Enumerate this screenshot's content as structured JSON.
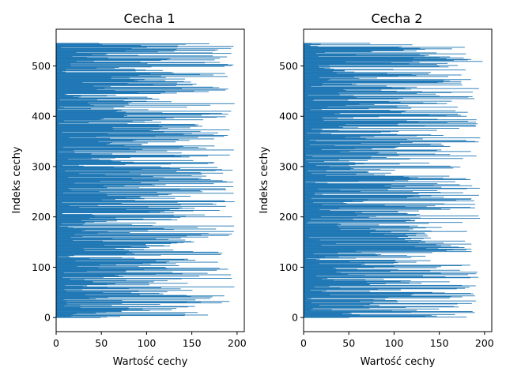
{
  "chart_data": [
    {
      "type": "bar",
      "orientation": "horizontal",
      "title": "Cecha 1",
      "xlabel": "Wartość cechy",
      "ylabel": "Indeks cechy",
      "xlim": [
        0,
        208
      ],
      "ylim": [
        -28,
        573
      ],
      "xticks": [
        0,
        50,
        100,
        150,
        200
      ],
      "yticks": [
        0,
        100,
        200,
        300,
        400,
        500
      ],
      "grid": false,
      "bar_color": "#1f77b4",
      "n_bars": 546,
      "seed": 11
    },
    {
      "type": "bar",
      "orientation": "horizontal",
      "title": "Cecha 2",
      "xlabel": "Wartość cechy",
      "ylabel": "Indeks cechy",
      "xlim": [
        0,
        208
      ],
      "ylim": [
        -28,
        573
      ],
      "xticks": [
        0,
        50,
        100,
        150,
        200
      ],
      "yticks": [
        0,
        100,
        200,
        300,
        400,
        500
      ],
      "grid": false,
      "bar_color": "#1f77b4",
      "n_bars": 546,
      "seed": 29
    }
  ]
}
